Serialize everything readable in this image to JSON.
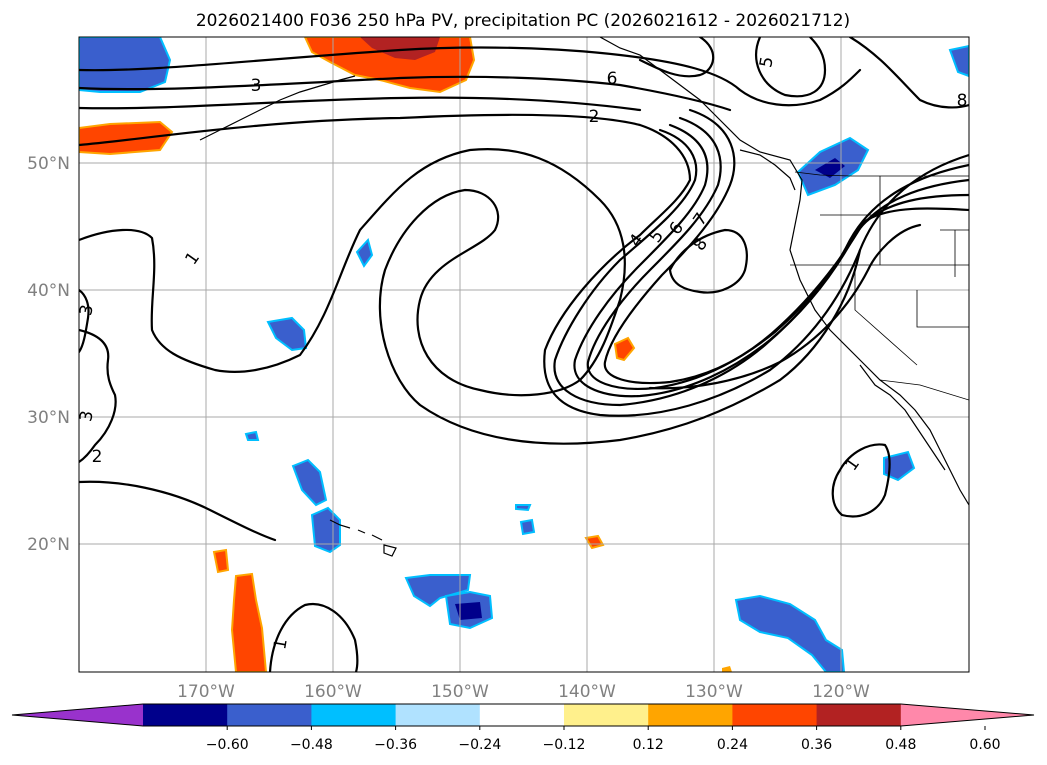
{
  "title": "2026021400 F036 250 hPa PV, precipitation PC (2026021612 - 2026021712)",
  "map": {
    "lat_ticks": [
      "50°N",
      "40°N",
      "30°N",
      "20°N"
    ],
    "lon_ticks": [
      "170°W",
      "160°W",
      "150°W",
      "140°W",
      "130°W",
      "120°W"
    ],
    "lat_range": [
      10,
      60
    ],
    "lon_range": [
      -180,
      -110
    ],
    "grid": true
  },
  "pv_contour_labels": [
    "3",
    "6",
    "5",
    "8",
    "2",
    "1",
    "4",
    "5",
    "6",
    "7",
    "8",
    "1",
    "3",
    "3",
    "2",
    "1"
  ],
  "colorbar": {
    "ticks": [
      "−0.60",
      "−0.48",
      "−0.36",
      "−0.24",
      "−0.12",
      "0.12",
      "0.24",
      "0.36",
      "0.48",
      "0.60"
    ],
    "colors": [
      "#9932cc",
      "#00008b",
      "#3a5fcd",
      "#00bfff",
      "#b0e2ff",
      "#ffffff",
      "#fff08c",
      "#ffa500",
      "#ff4500",
      "#b22222",
      "#ff88aa"
    ],
    "extend": "both"
  }
}
